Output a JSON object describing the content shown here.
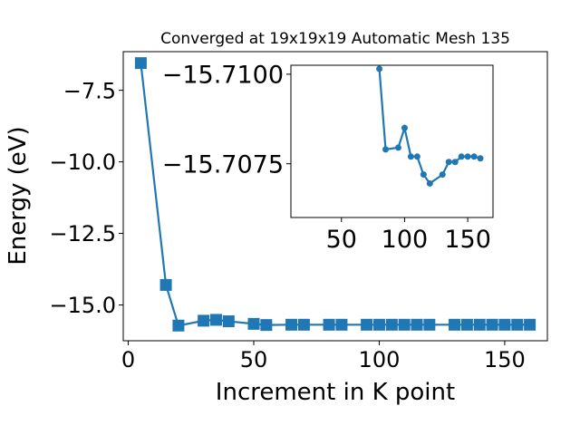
{
  "chart_data": [
    {
      "type": "line",
      "title": "Converged at 19x19x19 Automatic Mesh 135",
      "xlabel": "Increment in K point",
      "ylabel": "Energy (eV)",
      "xlim": [
        -2,
        167
      ],
      "ylim": [
        -16.25,
        -6.15
      ],
      "xticks": [
        0,
        50,
        100,
        150
      ],
      "xtick_labels": [
        "0",
        "50",
        "100",
        "150"
      ],
      "yticks": [
        -7.5,
        -10.0,
        -12.5,
        -15.0
      ],
      "ytick_labels": [
        "−7.5",
        "−10.0",
        "−12.5",
        "−15.0"
      ],
      "marker": "square",
      "color": "#1f77b4",
      "series": [
        {
          "x": [
            5,
            15,
            20,
            30,
            35,
            40,
            50,
            55,
            65,
            70,
            80,
            85,
            95,
            100,
            105,
            110,
            115,
            120,
            130,
            135,
            140,
            145,
            150,
            155,
            160
          ],
          "y": [
            -6.55,
            -14.3,
            -15.72,
            -15.55,
            -15.52,
            -15.57,
            -15.66,
            -15.7,
            -15.69,
            -15.69,
            -15.69,
            -15.69,
            -15.69,
            -15.69,
            -15.69,
            -15.69,
            -15.69,
            -15.69,
            -15.69,
            -15.69,
            -15.69,
            -15.69,
            -15.69,
            -15.69,
            -15.69
          ]
        }
      ]
    },
    {
      "type": "line",
      "inset": true,
      "xlim": [
        10,
        170
      ],
      "ylim": [
        -15.706,
        -15.71025
      ],
      "xticks": [
        50,
        100,
        150
      ],
      "xtick_labels": [
        "50",
        "100",
        "150"
      ],
      "yticks": [
        -15.71,
        -15.7075
      ],
      "ytick_labels": [
        "−15.7100",
        "−15.7075"
      ],
      "marker": "circle",
      "color": "#1f77b4",
      "series": [
        {
          "x": [
            80,
            85,
            95,
            100,
            105,
            110,
            115,
            120,
            130,
            135,
            140,
            145,
            150,
            155,
            160
          ],
          "y": [
            -15.71015,
            -15.7079,
            -15.70795,
            -15.7085,
            -15.7077,
            -15.7077,
            -15.7072,
            -15.70695,
            -15.7072,
            -15.70755,
            -15.70755,
            -15.7077,
            -15.7077,
            -15.7077,
            -15.70765
          ]
        }
      ]
    }
  ]
}
